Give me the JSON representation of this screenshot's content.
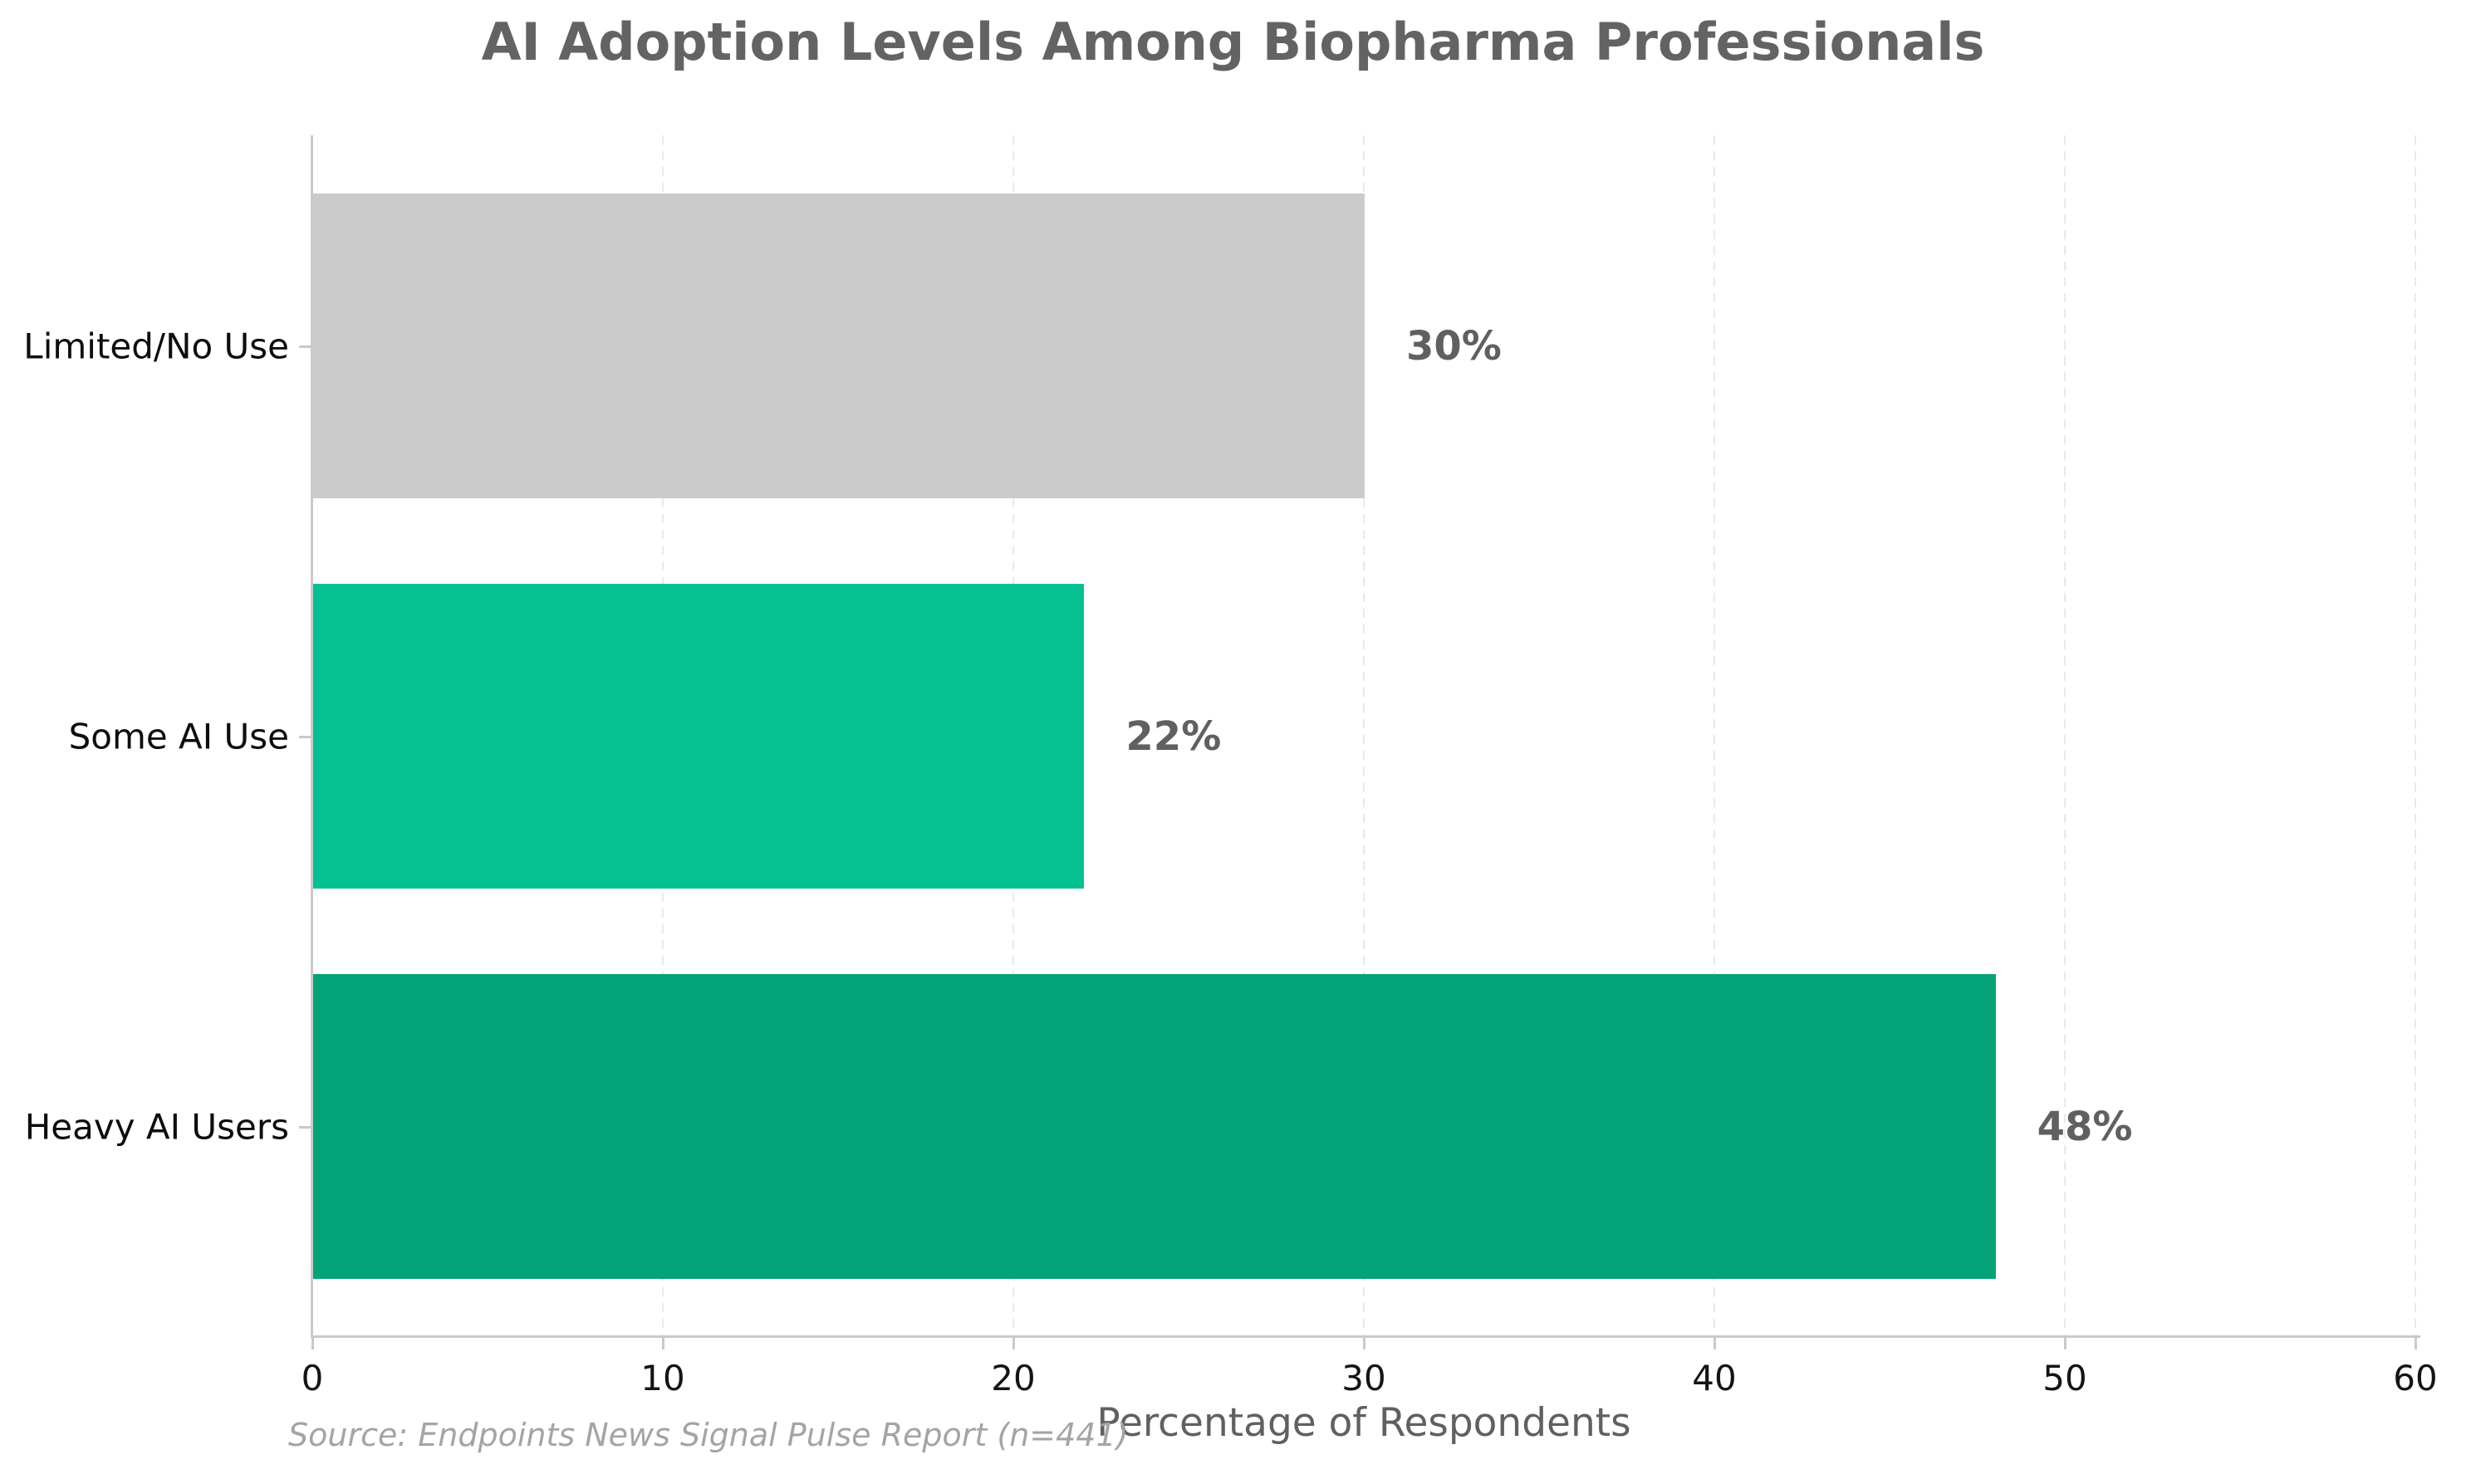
{
  "chart_data": {
    "type": "bar",
    "orientation": "horizontal",
    "title": "AI Adoption Levels Among Biopharma Professionals",
    "categories": [
      "Limited/No Use",
      "Some AI Use",
      "Heavy AI Users"
    ],
    "values": [
      30,
      22,
      48
    ],
    "value_labels": [
      "30%",
      "22%",
      "48%"
    ],
    "bar_colors": [
      "#cbcbcb",
      "#05c192",
      "#04a377"
    ],
    "xlabel": "Percentage of Respondents",
    "xlim": [
      0,
      60
    ],
    "xticks": [
      0,
      10,
      20,
      30,
      40,
      50,
      60
    ],
    "grid": "vertical-dashed-behind-bars",
    "legend": "none",
    "source": "Source: Endpoints News Signal Pulse Report (n=441)",
    "colors": {
      "title_text": "#636363",
      "value_label_text": "#606060",
      "axis_label_text": "#606060",
      "tick_label_text": "#141414",
      "category_label_text": "#0d0d0d",
      "axis_line": "#c9c9c9",
      "gridline": "#e9e9e9",
      "source_text": "#a4a4a4",
      "background": "#ffffff"
    }
  }
}
